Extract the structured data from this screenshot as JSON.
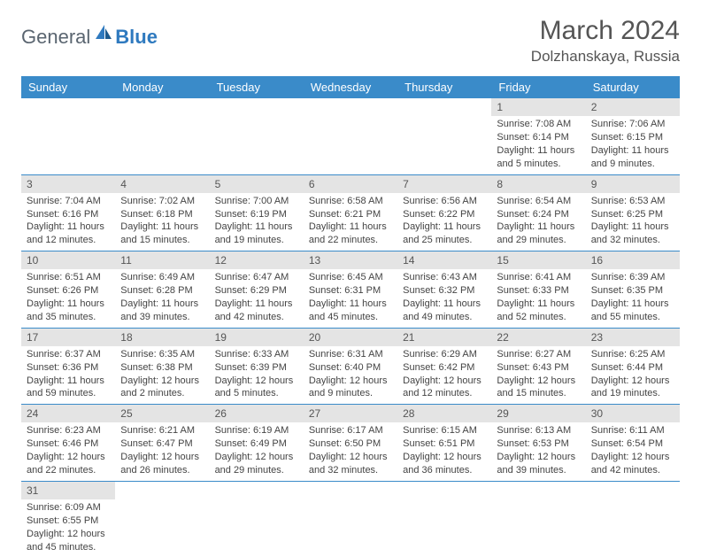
{
  "brand": {
    "word1": "General",
    "word2": "Blue"
  },
  "title": "March 2024",
  "location": "Dolzhanskaya, Russia",
  "colors": {
    "header_bg": "#3a8bc9",
    "header_text": "#ffffff",
    "daynum_bg": "#e4e4e4",
    "row_divider": "#3a8bc9",
    "text": "#444444",
    "brand_grey": "#5a6570",
    "brand_blue": "#2f7abf"
  },
  "weekdays": [
    "Sunday",
    "Monday",
    "Tuesday",
    "Wednesday",
    "Thursday",
    "Friday",
    "Saturday"
  ],
  "weeks": [
    [
      null,
      null,
      null,
      null,
      null,
      {
        "n": "1",
        "sunrise": "Sunrise: 7:08 AM",
        "sunset": "Sunset: 6:14 PM",
        "daylight": "Daylight: 11 hours and 5 minutes."
      },
      {
        "n": "2",
        "sunrise": "Sunrise: 7:06 AM",
        "sunset": "Sunset: 6:15 PM",
        "daylight": "Daylight: 11 hours and 9 minutes."
      }
    ],
    [
      {
        "n": "3",
        "sunrise": "Sunrise: 7:04 AM",
        "sunset": "Sunset: 6:16 PM",
        "daylight": "Daylight: 11 hours and 12 minutes."
      },
      {
        "n": "4",
        "sunrise": "Sunrise: 7:02 AM",
        "sunset": "Sunset: 6:18 PM",
        "daylight": "Daylight: 11 hours and 15 minutes."
      },
      {
        "n": "5",
        "sunrise": "Sunrise: 7:00 AM",
        "sunset": "Sunset: 6:19 PM",
        "daylight": "Daylight: 11 hours and 19 minutes."
      },
      {
        "n": "6",
        "sunrise": "Sunrise: 6:58 AM",
        "sunset": "Sunset: 6:21 PM",
        "daylight": "Daylight: 11 hours and 22 minutes."
      },
      {
        "n": "7",
        "sunrise": "Sunrise: 6:56 AM",
        "sunset": "Sunset: 6:22 PM",
        "daylight": "Daylight: 11 hours and 25 minutes."
      },
      {
        "n": "8",
        "sunrise": "Sunrise: 6:54 AM",
        "sunset": "Sunset: 6:24 PM",
        "daylight": "Daylight: 11 hours and 29 minutes."
      },
      {
        "n": "9",
        "sunrise": "Sunrise: 6:53 AM",
        "sunset": "Sunset: 6:25 PM",
        "daylight": "Daylight: 11 hours and 32 minutes."
      }
    ],
    [
      {
        "n": "10",
        "sunrise": "Sunrise: 6:51 AM",
        "sunset": "Sunset: 6:26 PM",
        "daylight": "Daylight: 11 hours and 35 minutes."
      },
      {
        "n": "11",
        "sunrise": "Sunrise: 6:49 AM",
        "sunset": "Sunset: 6:28 PM",
        "daylight": "Daylight: 11 hours and 39 minutes."
      },
      {
        "n": "12",
        "sunrise": "Sunrise: 6:47 AM",
        "sunset": "Sunset: 6:29 PM",
        "daylight": "Daylight: 11 hours and 42 minutes."
      },
      {
        "n": "13",
        "sunrise": "Sunrise: 6:45 AM",
        "sunset": "Sunset: 6:31 PM",
        "daylight": "Daylight: 11 hours and 45 minutes."
      },
      {
        "n": "14",
        "sunrise": "Sunrise: 6:43 AM",
        "sunset": "Sunset: 6:32 PM",
        "daylight": "Daylight: 11 hours and 49 minutes."
      },
      {
        "n": "15",
        "sunrise": "Sunrise: 6:41 AM",
        "sunset": "Sunset: 6:33 PM",
        "daylight": "Daylight: 11 hours and 52 minutes."
      },
      {
        "n": "16",
        "sunrise": "Sunrise: 6:39 AM",
        "sunset": "Sunset: 6:35 PM",
        "daylight": "Daylight: 11 hours and 55 minutes."
      }
    ],
    [
      {
        "n": "17",
        "sunrise": "Sunrise: 6:37 AM",
        "sunset": "Sunset: 6:36 PM",
        "daylight": "Daylight: 11 hours and 59 minutes."
      },
      {
        "n": "18",
        "sunrise": "Sunrise: 6:35 AM",
        "sunset": "Sunset: 6:38 PM",
        "daylight": "Daylight: 12 hours and 2 minutes."
      },
      {
        "n": "19",
        "sunrise": "Sunrise: 6:33 AM",
        "sunset": "Sunset: 6:39 PM",
        "daylight": "Daylight: 12 hours and 5 minutes."
      },
      {
        "n": "20",
        "sunrise": "Sunrise: 6:31 AM",
        "sunset": "Sunset: 6:40 PM",
        "daylight": "Daylight: 12 hours and 9 minutes."
      },
      {
        "n": "21",
        "sunrise": "Sunrise: 6:29 AM",
        "sunset": "Sunset: 6:42 PM",
        "daylight": "Daylight: 12 hours and 12 minutes."
      },
      {
        "n": "22",
        "sunrise": "Sunrise: 6:27 AM",
        "sunset": "Sunset: 6:43 PM",
        "daylight": "Daylight: 12 hours and 15 minutes."
      },
      {
        "n": "23",
        "sunrise": "Sunrise: 6:25 AM",
        "sunset": "Sunset: 6:44 PM",
        "daylight": "Daylight: 12 hours and 19 minutes."
      }
    ],
    [
      {
        "n": "24",
        "sunrise": "Sunrise: 6:23 AM",
        "sunset": "Sunset: 6:46 PM",
        "daylight": "Daylight: 12 hours and 22 minutes."
      },
      {
        "n": "25",
        "sunrise": "Sunrise: 6:21 AM",
        "sunset": "Sunset: 6:47 PM",
        "daylight": "Daylight: 12 hours and 26 minutes."
      },
      {
        "n": "26",
        "sunrise": "Sunrise: 6:19 AM",
        "sunset": "Sunset: 6:49 PM",
        "daylight": "Daylight: 12 hours and 29 minutes."
      },
      {
        "n": "27",
        "sunrise": "Sunrise: 6:17 AM",
        "sunset": "Sunset: 6:50 PM",
        "daylight": "Daylight: 12 hours and 32 minutes."
      },
      {
        "n": "28",
        "sunrise": "Sunrise: 6:15 AM",
        "sunset": "Sunset: 6:51 PM",
        "daylight": "Daylight: 12 hours and 36 minutes."
      },
      {
        "n": "29",
        "sunrise": "Sunrise: 6:13 AM",
        "sunset": "Sunset: 6:53 PM",
        "daylight": "Daylight: 12 hours and 39 minutes."
      },
      {
        "n": "30",
        "sunrise": "Sunrise: 6:11 AM",
        "sunset": "Sunset: 6:54 PM",
        "daylight": "Daylight: 12 hours and 42 minutes."
      }
    ],
    [
      {
        "n": "31",
        "sunrise": "Sunrise: 6:09 AM",
        "sunset": "Sunset: 6:55 PM",
        "daylight": "Daylight: 12 hours and 45 minutes."
      },
      null,
      null,
      null,
      null,
      null,
      null
    ]
  ]
}
